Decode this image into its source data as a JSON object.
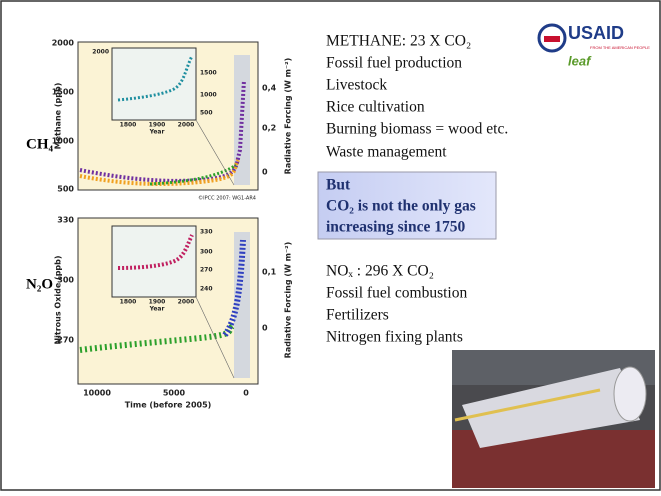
{
  "figure": {
    "methane": {
      "label": "CH₄",
      "ylabel": "Methane (ppb)",
      "y2label": "Radiative Forcing (W m⁻²)",
      "yticks": [
        500,
        1000,
        1500,
        2000
      ],
      "y2ticks": [
        "0",
        "0,2",
        "0,4"
      ],
      "inset": {
        "yticks": [
          500,
          1000,
          1500,
          2000
        ],
        "xticks": [
          1800,
          1900,
          2000
        ],
        "xlabel": "Year"
      },
      "credit": "©IPCC 2007: WG1-AR4"
    },
    "n2o": {
      "label": "N₂O",
      "ylabel": "Nitrous Oxide (ppb)",
      "y2label": "Radiative Forcing (W m⁻²)",
      "yticks": [
        270,
        300,
        330
      ],
      "y2ticks": [
        "0",
        "0,1"
      ],
      "inset": {
        "yticks": [
          240,
          270,
          300,
          330
        ],
        "xticks": [
          1800,
          1900,
          2000
        ],
        "xlabel": "Year"
      }
    },
    "xticks": [
      10000,
      5000,
      0
    ],
    "xlabel": "Time (before 2005)"
  },
  "methane_text": {
    "heading": "METHANE: 23 X CO₂",
    "items": [
      "Fossil fuel production",
      "Livestock",
      "Rice cultivation",
      "Burning biomass = wood etc.",
      "Waste management"
    ]
  },
  "callout": {
    "lines": [
      "But",
      "CO₂ is not the only gas",
      "increasing since 1750"
    ]
  },
  "nox_text": {
    "heading": "NOₓ : 296 X CO₂",
    "items": [
      "Fossil fuel combustion",
      "Fertilizers",
      "Nitrogen fixing plants"
    ]
  },
  "logo": {
    "name": "USAID",
    "tagline": "FROM THE AMERICAN PEOPLE",
    "program": "leaf"
  }
}
